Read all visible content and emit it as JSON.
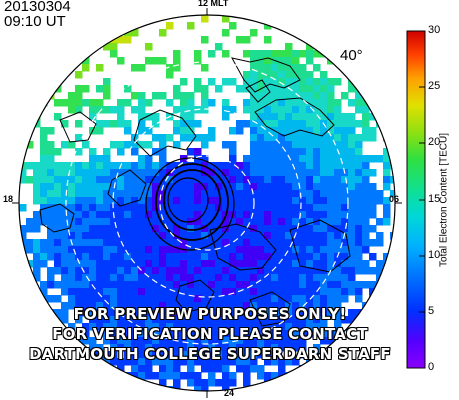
{
  "header": {
    "date": "20130304",
    "time": "09:10 UT"
  },
  "map": {
    "latitude_label": "40°",
    "mlt_labels": {
      "top": "12 MLT",
      "bottom": "24",
      "left": "18",
      "right": "06"
    },
    "projection": "polar-north",
    "grid": true
  },
  "colorbar": {
    "title": "Total Electron Content [TECU]",
    "ticks": [
      "0",
      "5",
      "10",
      "15",
      "20",
      "25",
      "30"
    ],
    "range": [
      0,
      30
    ],
    "colors": [
      "#7a00e0",
      "#3f00f5",
      "#0039ff",
      "#0078ff",
      "#00b7ee",
      "#18d8c8",
      "#1edd90",
      "#32e050",
      "#78e01e",
      "#c6e00c",
      "#ffd000",
      "#ff7a00",
      "#ff2a00",
      "#d00000"
    ]
  },
  "watermark": {
    "lines": [
      "FOR PREVIEW PURPOSES ONLY!",
      "FOR VERIFICATION PLEASE CONTACT",
      "DARTMOUTH COLLEGE SUPERDARN STAFF"
    ]
  }
}
